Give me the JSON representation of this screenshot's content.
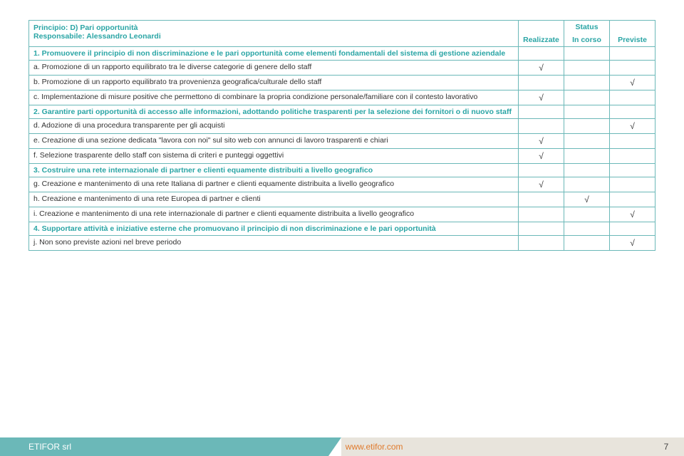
{
  "table": {
    "header_left_line1": "Principio: D) Pari opportunità",
    "header_left_line2": "Responsabile: Alessandro Leonardi",
    "status_label": "Status",
    "status_cols": [
      "Realizzate",
      "In corso",
      "Previste"
    ]
  },
  "rows": [
    {
      "type": "section",
      "text": "1. Promuovere il principio di non discriminazione e le pari opportunità come elementi fondamentali del sistema di gestione aziendale",
      "marks": [
        "",
        "",
        ""
      ]
    },
    {
      "type": "item",
      "text": "a. Promozione di un rapporto equilibrato tra le diverse categorie di genere dello staff",
      "marks": [
        "√",
        "",
        ""
      ]
    },
    {
      "type": "item",
      "text": "b. Promozione di un rapporto equilibrato tra provenienza geografica/culturale dello staff",
      "marks": [
        "",
        "",
        "√"
      ]
    },
    {
      "type": "item",
      "text": "c. Implementazione di misure positive che permettono di combinare la propria condizione personale/familiare con il contesto lavorativo",
      "marks": [
        "√",
        "",
        ""
      ]
    },
    {
      "type": "section",
      "text": "2. Garantire parti opportunità di accesso alle informazioni, adottando politiche trasparenti per la selezione dei fornitori o di nuovo staff",
      "marks": [
        "",
        "",
        ""
      ]
    },
    {
      "type": "item",
      "text": "d. Adozione di una procedura transparente per gli acquisti",
      "marks": [
        "",
        "",
        "√"
      ]
    },
    {
      "type": "item",
      "text": "e. Creazione di una sezione dedicata \"lavora con noi\" sul sito web con annunci di lavoro trasparenti e chiari",
      "marks": [
        "√",
        "",
        ""
      ]
    },
    {
      "type": "item",
      "text": "f. Selezione trasparente dello staff con sistema di criteri e punteggi oggettivi",
      "marks": [
        "√",
        "",
        ""
      ]
    },
    {
      "type": "section",
      "text": "3. Costruire una rete internazionale di partner e clienti equamente distribuiti a livello geografico",
      "marks": [
        "",
        "",
        ""
      ]
    },
    {
      "type": "item",
      "text": "g. Creazione e mantenimento di una rete Italiana di partner e clienti equamente distribuita a livello geografico",
      "marks": [
        "√",
        "",
        ""
      ]
    },
    {
      "type": "item",
      "text": "h. Creazione e mantenimento di una rete Europea di partner e clienti",
      "marks": [
        "",
        "√",
        ""
      ]
    },
    {
      "type": "item",
      "text": "i. Creazione e mantenimento di una rete internazionale di partner e clienti equamente distribuita a livello geografico",
      "marks": [
        "",
        "",
        "√"
      ]
    },
    {
      "type": "section",
      "text": "4. Supportare attività e iniziative esterne che promuovano il principio di non discriminazione e le pari opportunità",
      "marks": [
        "",
        "",
        ""
      ]
    },
    {
      "type": "item",
      "text": "j. Non sono previste azioni nel breve periodo",
      "marks": [
        "",
        "",
        "√"
      ]
    }
  ],
  "footer": {
    "left": "ETIFOR srl",
    "mid": "www.etifor.com",
    "page": "7"
  },
  "colors": {
    "teal": "#6bb8b8",
    "teal_text": "#2aa5a5",
    "orange": "#e07b2e",
    "footer_bg": "#e8e4dc"
  }
}
